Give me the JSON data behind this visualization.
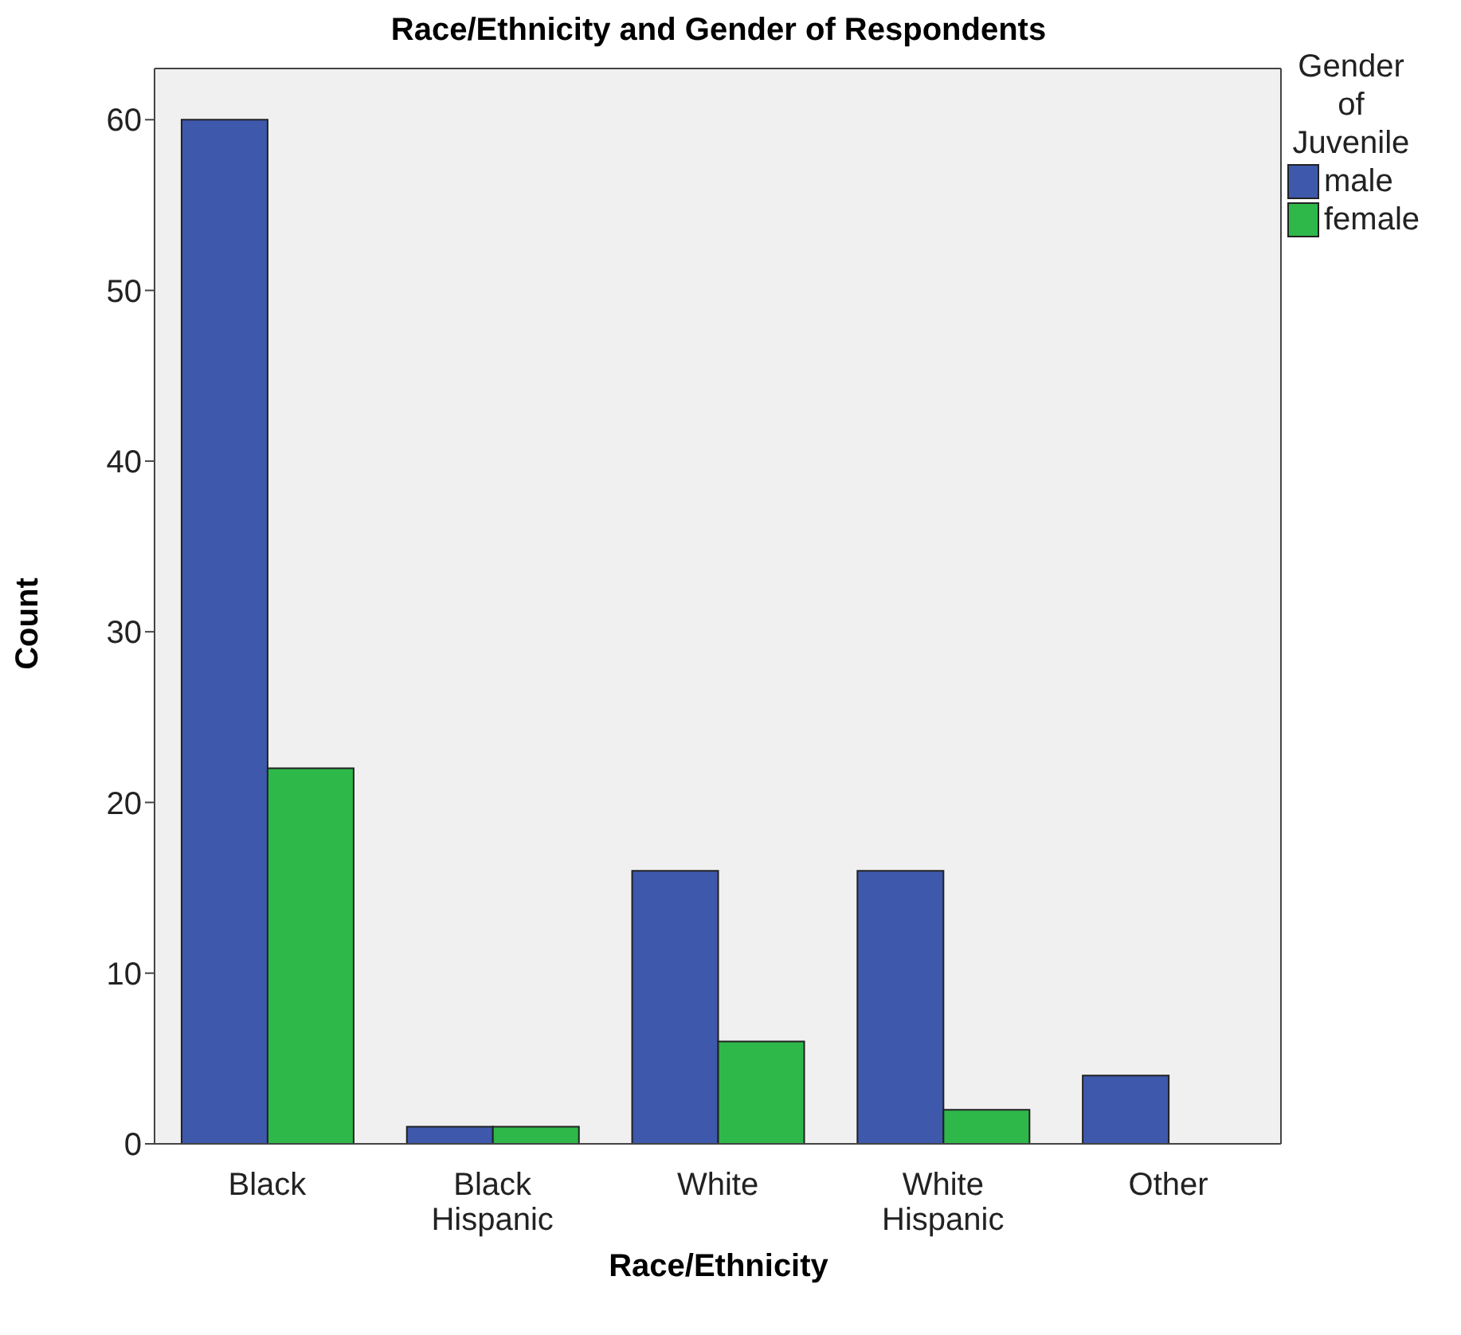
{
  "chart_data": {
    "type": "bar",
    "title": "Race/Ethnicity and Gender of Respondents",
    "xlabel": "Race/Ethnicity",
    "ylabel": "Count",
    "legend_title": "Gender of Juvenile",
    "categories": [
      "Black",
      "Black Hispanic",
      "White",
      "White Hispanic",
      "Other"
    ],
    "series": [
      {
        "name": "male",
        "color": "#3e58ac",
        "values": [
          60,
          1,
          16,
          16,
          4
        ]
      },
      {
        "name": "female",
        "color": "#2eb84a",
        "values": [
          22,
          1,
          6,
          2,
          0
        ]
      }
    ],
    "ylim": [
      0,
      63
    ],
    "yticks": [
      0,
      10,
      20,
      30,
      40,
      50,
      60
    ],
    "legend": "top right"
  }
}
